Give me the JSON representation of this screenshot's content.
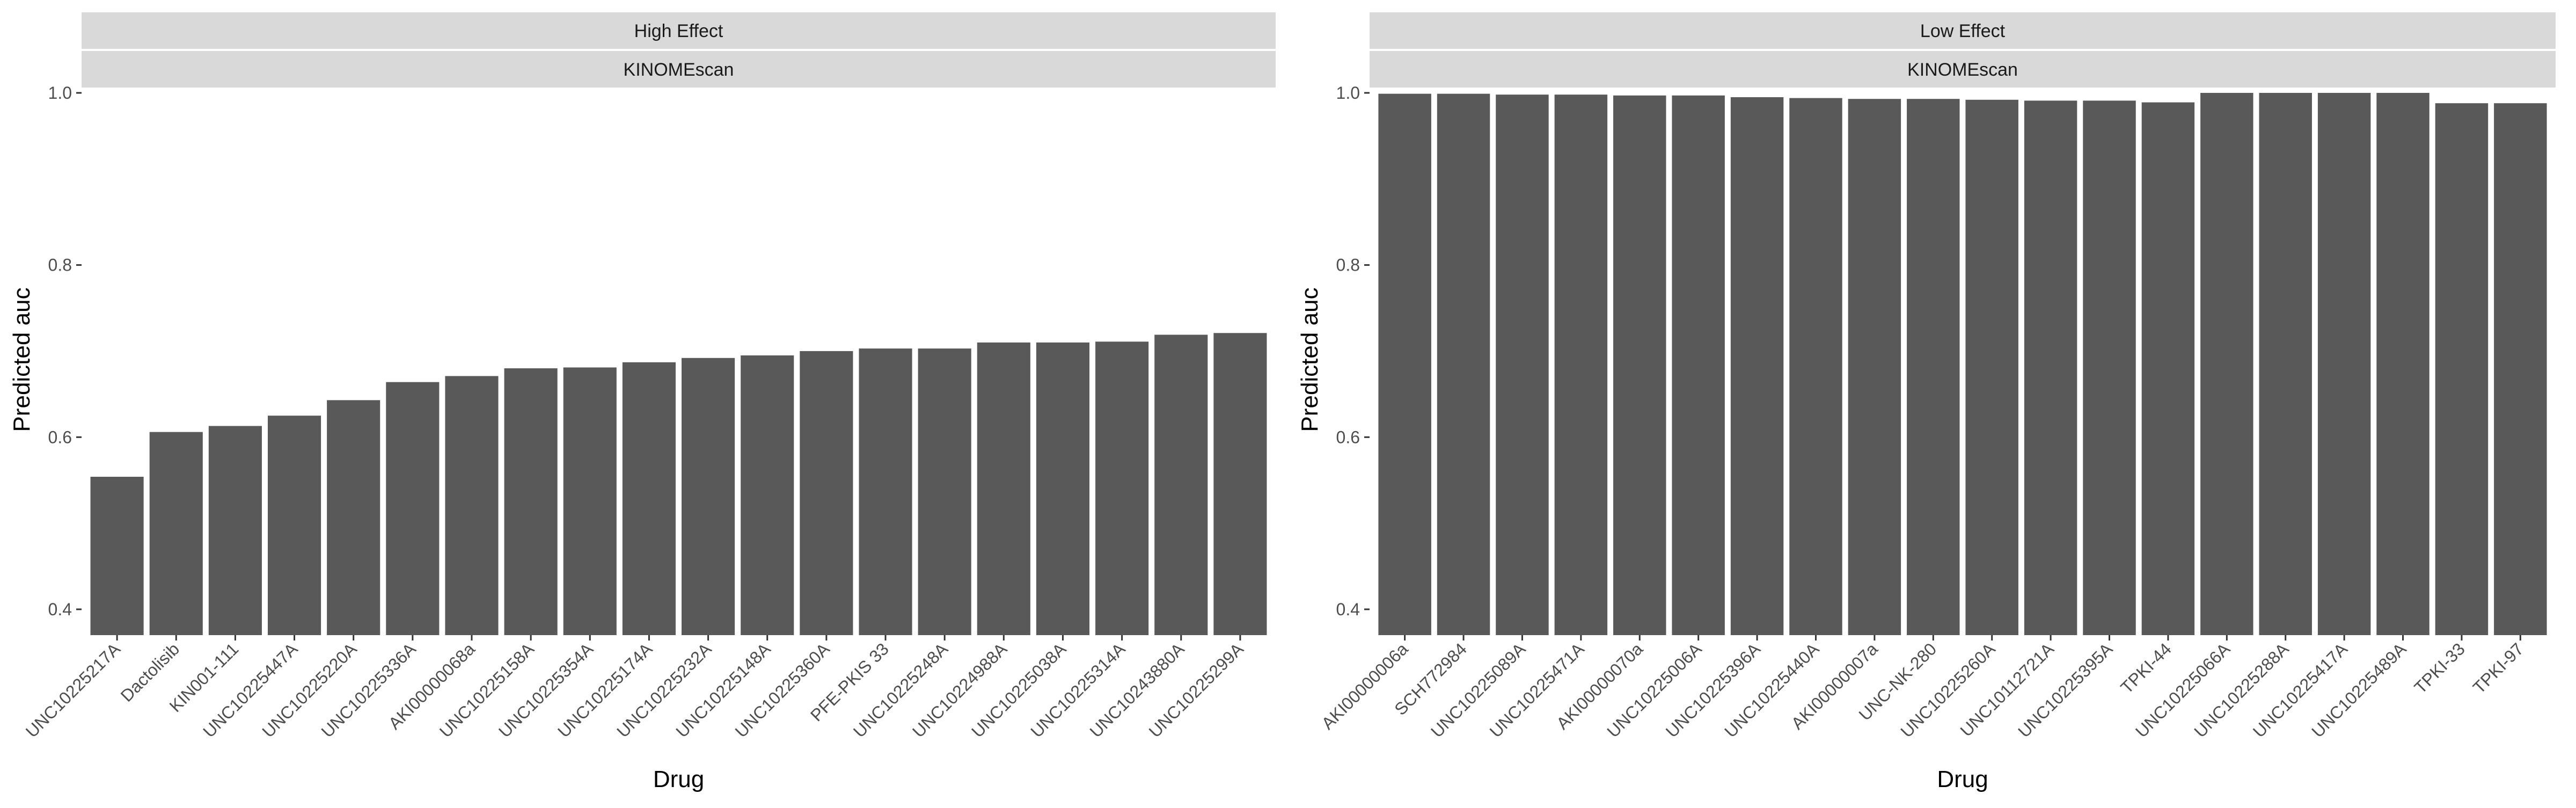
{
  "chart_data": [
    {
      "type": "bar",
      "facet": [
        "High Effect",
        "KINOMEscan"
      ],
      "xlabel": "Drug",
      "ylabel": "Predicted auc",
      "ylim": [
        0.37,
        1.0
      ],
      "yticks": [
        0.4,
        0.6,
        0.8,
        1.0
      ],
      "ytick_labels": [
        "0.4",
        "0.6",
        "0.8",
        "1.0"
      ],
      "grid": false,
      "bar_color": "#595959",
      "categories": [
        "UNC10225217A",
        "Dactolisib",
        "KIN001-111",
        "UNC10225447A",
        "UNC10225220A",
        "UNC10225336A",
        "AKI00000068a",
        "UNC10225158A",
        "UNC10225354A",
        "UNC10225174A",
        "UNC10225232A",
        "UNC10225148A",
        "UNC10225360A",
        "PFE-PKIS 33",
        "UNC10225248A",
        "UNC10224988A",
        "UNC10225038A",
        "UNC10225314A",
        "UNC10243880A",
        "UNC10225299A"
      ],
      "values": [
        0.554,
        0.606,
        0.613,
        0.625,
        0.643,
        0.664,
        0.671,
        0.68,
        0.681,
        0.687,
        0.692,
        0.695,
        0.7,
        0.703,
        0.703,
        0.71,
        0.71,
        0.711,
        0.719,
        0.721
      ]
    },
    {
      "type": "bar",
      "facet": [
        "Low Effect",
        "KINOMEscan"
      ],
      "xlabel": "Drug",
      "ylabel": "Predicted auc",
      "ylim": [
        0.37,
        1.0
      ],
      "yticks": [
        0.4,
        0.6,
        0.8,
        1.0
      ],
      "ytick_labels": [
        "0.4",
        "0.6",
        "0.8",
        "1.0"
      ],
      "grid": false,
      "bar_color": "#595959",
      "categories": [
        "AKI00000006a",
        "SCH772984",
        "UNC10225089A",
        "UNC10225471A",
        "AKI00000070a",
        "UNC10225006A",
        "UNC10225396A",
        "UNC10225440A",
        "AKI00000007a",
        "UNC-NK-280",
        "UNC10225260A",
        "UNC10112721A",
        "UNC10225395A",
        "TPKI-44",
        "UNC10225066A",
        "UNC10225288A",
        "UNC10225417A",
        "UNC10225489A",
        "TPKI-33",
        "TPKI-97"
      ],
      "values": [
        0.999,
        0.999,
        0.998,
        0.998,
        0.997,
        0.997,
        0.995,
        0.994,
        0.993,
        0.993,
        0.992,
        0.991,
        0.991,
        0.989,
        1.0,
        1.0,
        1.0,
        1.0,
        0.988,
        0.988
      ]
    }
  ]
}
